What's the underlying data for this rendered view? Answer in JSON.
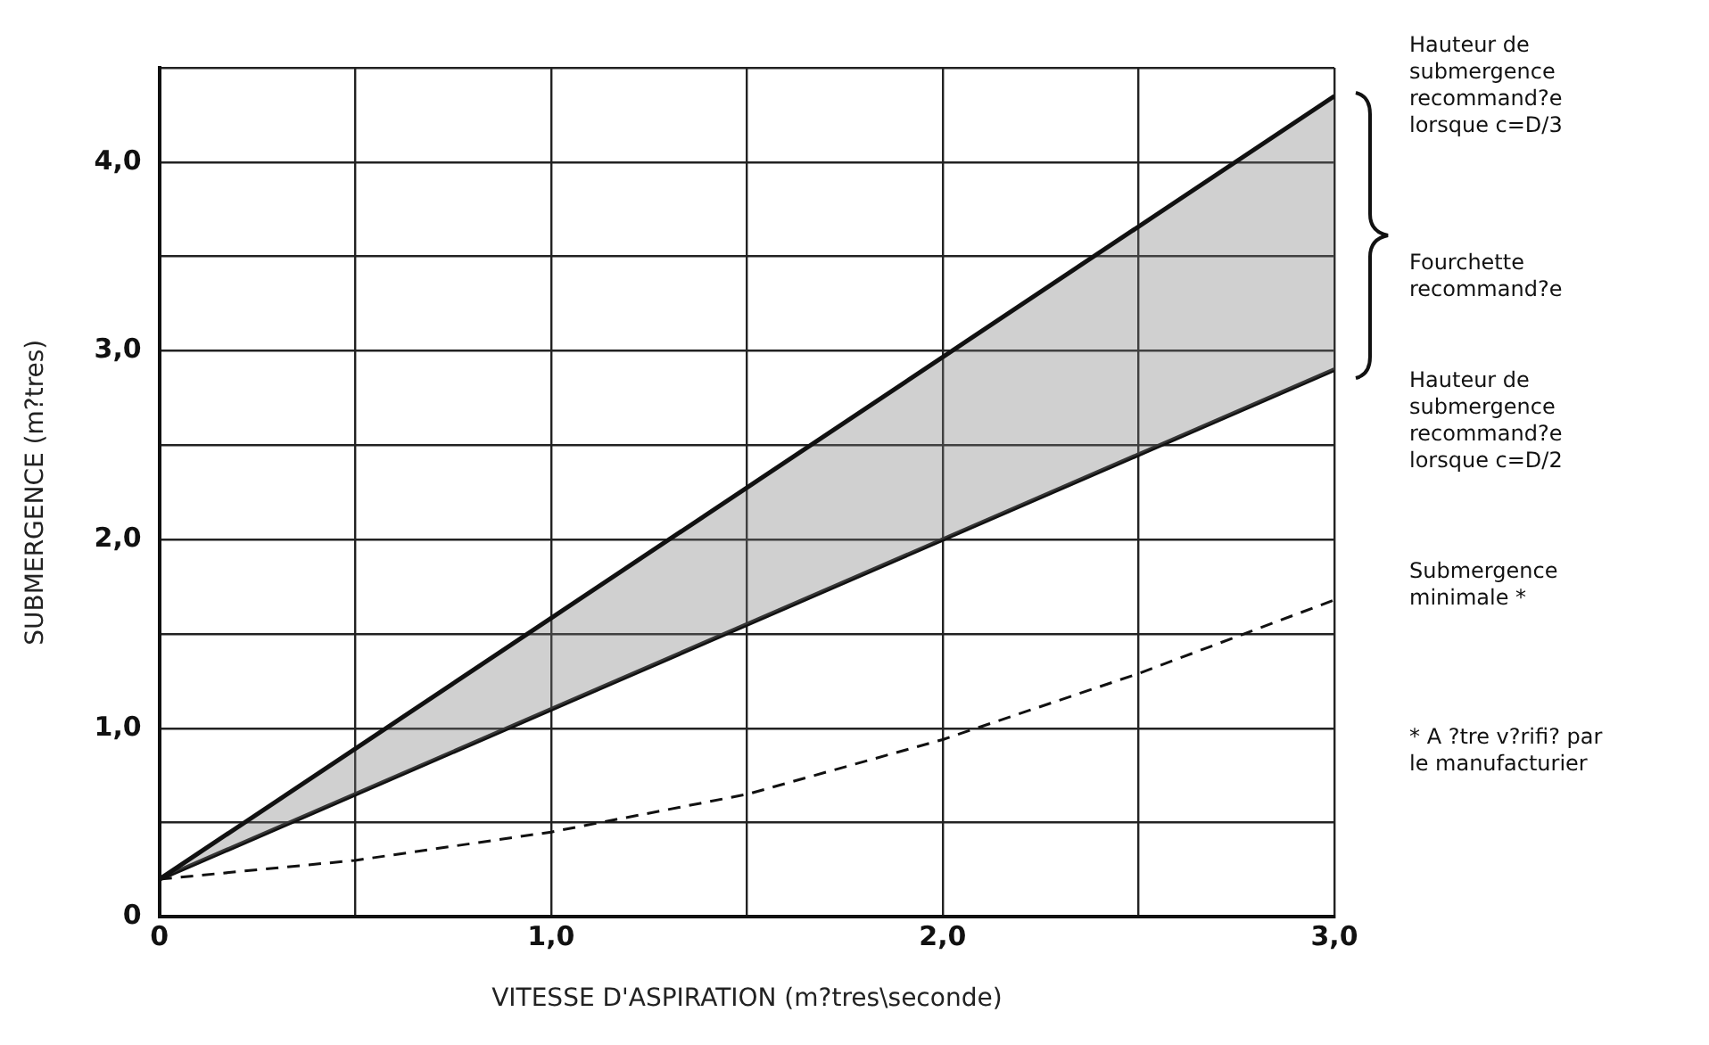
{
  "chart_data": {
    "type": "line",
    "xlabel": "VITESSE D'ASPIRATION (m?tres\\seconde)",
    "ylabel": "SUBMERGENCE (m?tres)",
    "series": [
      {
        "x": [
          0,
          3
        ],
        "values": [
          0.2,
          4.35
        ],
        "color": "#111111"
      },
      {
        "x": [
          0,
          3
        ],
        "values": [
          0.2,
          2.9
        ],
        "color": "#111111"
      },
      {
        "x": [
          0,
          0.5,
          1,
          1.5,
          2,
          2.5,
          3
        ],
        "values": [
          0.2,
          0.3,
          0.45,
          0.65,
          0.94,
          1.29,
          1.68
        ],
        "color": "#111111",
        "line_style": "dashed"
      }
    ],
    "xlim": [
      0,
      3
    ],
    "xticks": [
      0,
      {
        "value": 0.5,
        "label": null
      },
      {
        "value": 1,
        "label": "1,0"
      },
      {
        "value": 1.5,
        "label": null
      },
      {
        "value": 2,
        "label": "2,0"
      },
      {
        "value": 2.5,
        "label": null
      },
      {
        "value": 3,
        "label": "3,0"
      }
    ],
    "ylim": [
      0,
      4.5
    ],
    "yticks": [
      0,
      {
        "value": 0.5,
        "label": null
      },
      {
        "value": 1,
        "label": "1,0"
      },
      {
        "value": 1.5,
        "label": null
      },
      {
        "value": 2,
        "label": "2,0"
      },
      {
        "value": 2.5,
        "label": null
      },
      {
        "value": 3,
        "label": "3,0"
      },
      {
        "value": 3.5,
        "label": null
      },
      {
        "value": 4,
        "label": "4,0"
      },
      {
        "value": 4.5,
        "label": null
      }
    ],
    "grid": true,
    "legend": false,
    "marker": "none",
    "line_style": "solid",
    "annotations": [
      "Hauteur de submergence recommand?e lorsque c=D/3",
      "Fourchette recommand?e",
      "Hauteur de submergence recommand?e lorsque c=D/2",
      "Submergence minimale *",
      "* A ?tre v?rifi? par le manufacturier"
    ]
  }
}
